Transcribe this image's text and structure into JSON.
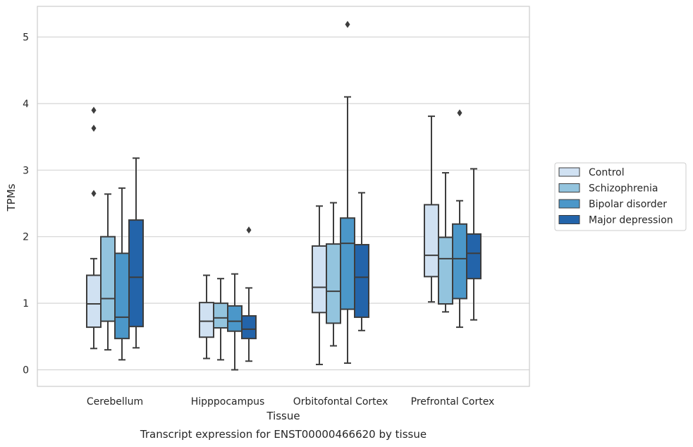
{
  "chart_data": {
    "type": "box",
    "title": "",
    "caption": "Transcript expression for ENST00000466620 by tissue",
    "xlabel": "Tissue",
    "ylabel": "TPMs",
    "ylim": [
      -0.25,
      5.45
    ],
    "yticks": [
      0,
      1,
      2,
      3,
      4,
      5
    ],
    "grid": "horizontal",
    "legend_position": "right",
    "categories": [
      "Cerebellum",
      "Hipppocampus",
      "Orbitofontal Cortex",
      "Prefrontal Cortex"
    ],
    "series": [
      {
        "name": "Control",
        "color": "#d0e1f2",
        "boxes": [
          {
            "whisker_low": 0.32,
            "q1": 0.64,
            "median": 0.99,
            "q3": 1.42,
            "whisker_high": 1.67,
            "outliers": [
              3.9,
              3.63,
              2.65
            ]
          },
          {
            "whisker_low": 0.17,
            "q1": 0.49,
            "median": 0.73,
            "q3": 1.01,
            "whisker_high": 1.42,
            "outliers": []
          },
          {
            "whisker_low": 0.08,
            "q1": 0.86,
            "median": 1.24,
            "q3": 1.86,
            "whisker_high": 2.46,
            "outliers": []
          },
          {
            "whisker_low": 1.02,
            "q1": 1.4,
            "median": 1.72,
            "q3": 2.48,
            "whisker_high": 3.81,
            "outliers": []
          }
        ]
      },
      {
        "name": "Schizophrenia",
        "color": "#93c4de",
        "boxes": [
          {
            "whisker_low": 0.3,
            "q1": 0.73,
            "median": 1.07,
            "q3": 2.0,
            "whisker_high": 2.64,
            "outliers": []
          },
          {
            "whisker_low": 0.15,
            "q1": 0.63,
            "median": 0.78,
            "q3": 1.0,
            "whisker_high": 1.37,
            "outliers": []
          },
          {
            "whisker_low": 0.36,
            "q1": 0.7,
            "median": 1.18,
            "q3": 1.89,
            "whisker_high": 2.51,
            "outliers": []
          },
          {
            "whisker_low": 0.87,
            "q1": 0.99,
            "median": 1.67,
            "q3": 1.99,
            "whisker_high": 2.96,
            "outliers": []
          }
        ]
      },
      {
        "name": "Bipolar disorder",
        "color": "#4b97c9",
        "boxes": [
          {
            "whisker_low": 0.15,
            "q1": 0.47,
            "median": 0.79,
            "q3": 1.75,
            "whisker_high": 2.73,
            "outliers": []
          },
          {
            "whisker_low": 0.0,
            "q1": 0.58,
            "median": 0.73,
            "q3": 0.96,
            "whisker_high": 1.44,
            "outliers": []
          },
          {
            "whisker_low": 0.1,
            "q1": 0.91,
            "median": 1.9,
            "q3": 2.28,
            "whisker_high": 4.1,
            "outliers": [
              5.19
            ]
          },
          {
            "whisker_low": 0.64,
            "q1": 1.07,
            "median": 1.67,
            "q3": 2.19,
            "whisker_high": 2.54,
            "outliers": [
              3.86
            ]
          }
        ]
      },
      {
        "name": "Major depression",
        "color": "#2364aa",
        "boxes": [
          {
            "whisker_low": 0.33,
            "q1": 0.65,
            "median": 1.39,
            "q3": 2.25,
            "whisker_high": 3.18,
            "outliers": []
          },
          {
            "whisker_low": 0.13,
            "q1": 0.47,
            "median": 0.61,
            "q3": 0.81,
            "whisker_high": 1.23,
            "outliers": [
              2.1
            ]
          },
          {
            "whisker_low": 0.59,
            "q1": 0.79,
            "median": 1.39,
            "q3": 1.88,
            "whisker_high": 2.66,
            "outliers": []
          },
          {
            "whisker_low": 0.75,
            "q1": 1.37,
            "median": 1.75,
            "q3": 2.04,
            "whisker_high": 3.02,
            "outliers": []
          }
        ]
      }
    ]
  }
}
